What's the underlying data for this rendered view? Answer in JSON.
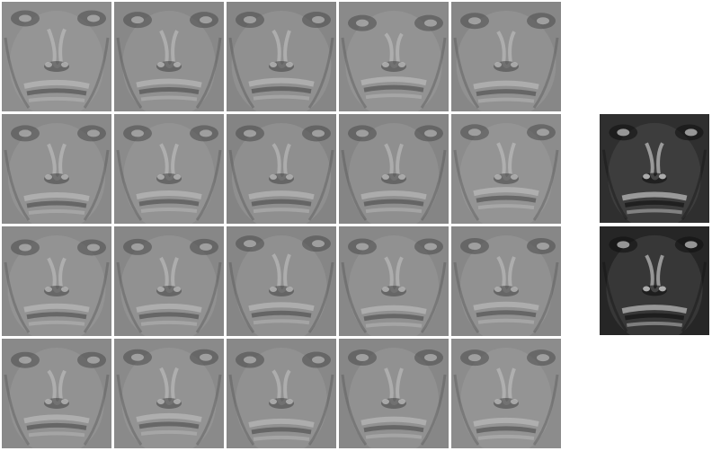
{
  "image_description": "",
  "grid": {
    "rows": 4,
    "cols": 5,
    "tiles": [
      {
        "tone": "#8e8e8e"
      },
      {
        "tone": "#888888"
      },
      {
        "tone": "#868686"
      },
      {
        "tone": "#8a8a8a"
      },
      {
        "tone": "#878787"
      },
      {
        "tone": "#898989"
      },
      {
        "tone": "#8b8b8b"
      },
      {
        "tone": "#848484"
      },
      {
        "tone": "#858585"
      },
      {
        "tone": "#8c8c8c"
      },
      {
        "tone": "#8a8a8a"
      },
      {
        "tone": "#878787"
      },
      {
        "tone": "#868686"
      },
      {
        "tone": "#888888"
      },
      {
        "tone": "#878787"
      },
      {
        "tone": "#898989"
      },
      {
        "tone": "#8a8a8a"
      },
      {
        "tone": "#888888"
      },
      {
        "tone": "#878787"
      },
      {
        "tone": "#8c8c8c"
      }
    ]
  },
  "side_faces": [
    {
      "tone": "#2f2f2f"
    },
    {
      "tone": "#262626"
    }
  ]
}
